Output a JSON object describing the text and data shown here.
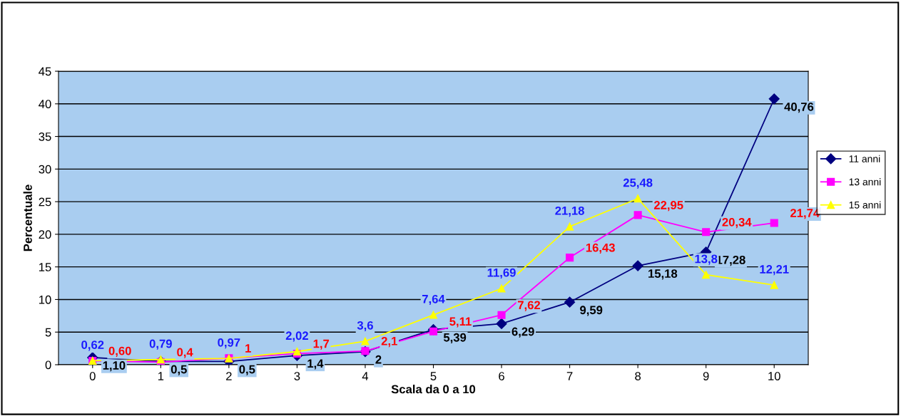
{
  "chart_data": {
    "type": "line",
    "xlabel": "Scala da 0 a 10",
    "ylabel": "Percentuale",
    "categories": [
      "0",
      "1",
      "2",
      "3",
      "4",
      "5",
      "6",
      "7",
      "8",
      "9",
      "10"
    ],
    "series": [
      {
        "name": "11 anni",
        "color": "#000080",
        "marker": "diamond",
        "values": [
          1.1,
          0.5,
          0.5,
          1.4,
          2,
          5.39,
          6.29,
          9.59,
          15.18,
          17.28,
          40.76
        ],
        "value_labels": [
          "1,10",
          "0,5",
          "0,5",
          "1,4",
          "2",
          "5,39",
          "6,29",
          "9,59",
          "15,18",
          "17,28",
          "40,76"
        ]
      },
      {
        "name": "13 anni",
        "color": "#ff00ff",
        "marker": "square",
        "values": [
          0.6,
          0.4,
          1,
          1.7,
          2.1,
          5.11,
          7.62,
          16.43,
          22.95,
          20.34,
          21.74
        ],
        "value_labels": [
          "0,60",
          "0,4",
          "1",
          "1,7",
          "2,1",
          "5,11",
          "7,62",
          "16,43",
          "22,95",
          "20,34",
          "21,74"
        ]
      },
      {
        "name": "15 anni",
        "color": "#ffff00",
        "marker": "triangle",
        "values": [
          0.62,
          0.79,
          0.97,
          2.02,
          3.6,
          7.64,
          11.69,
          21.18,
          25.48,
          13.8,
          12.21
        ],
        "value_labels": [
          "0,62",
          "0,79",
          "0,97",
          "2,02",
          "3,6",
          "7,64",
          "11,69",
          "21,18",
          "25,48",
          "13,8",
          "12,21"
        ]
      }
    ],
    "ylim": [
      0,
      45
    ],
    "yticks": [
      0,
      5,
      10,
      15,
      20,
      25,
      30,
      35,
      40,
      45
    ],
    "grid": "y",
    "legend": "right"
  }
}
